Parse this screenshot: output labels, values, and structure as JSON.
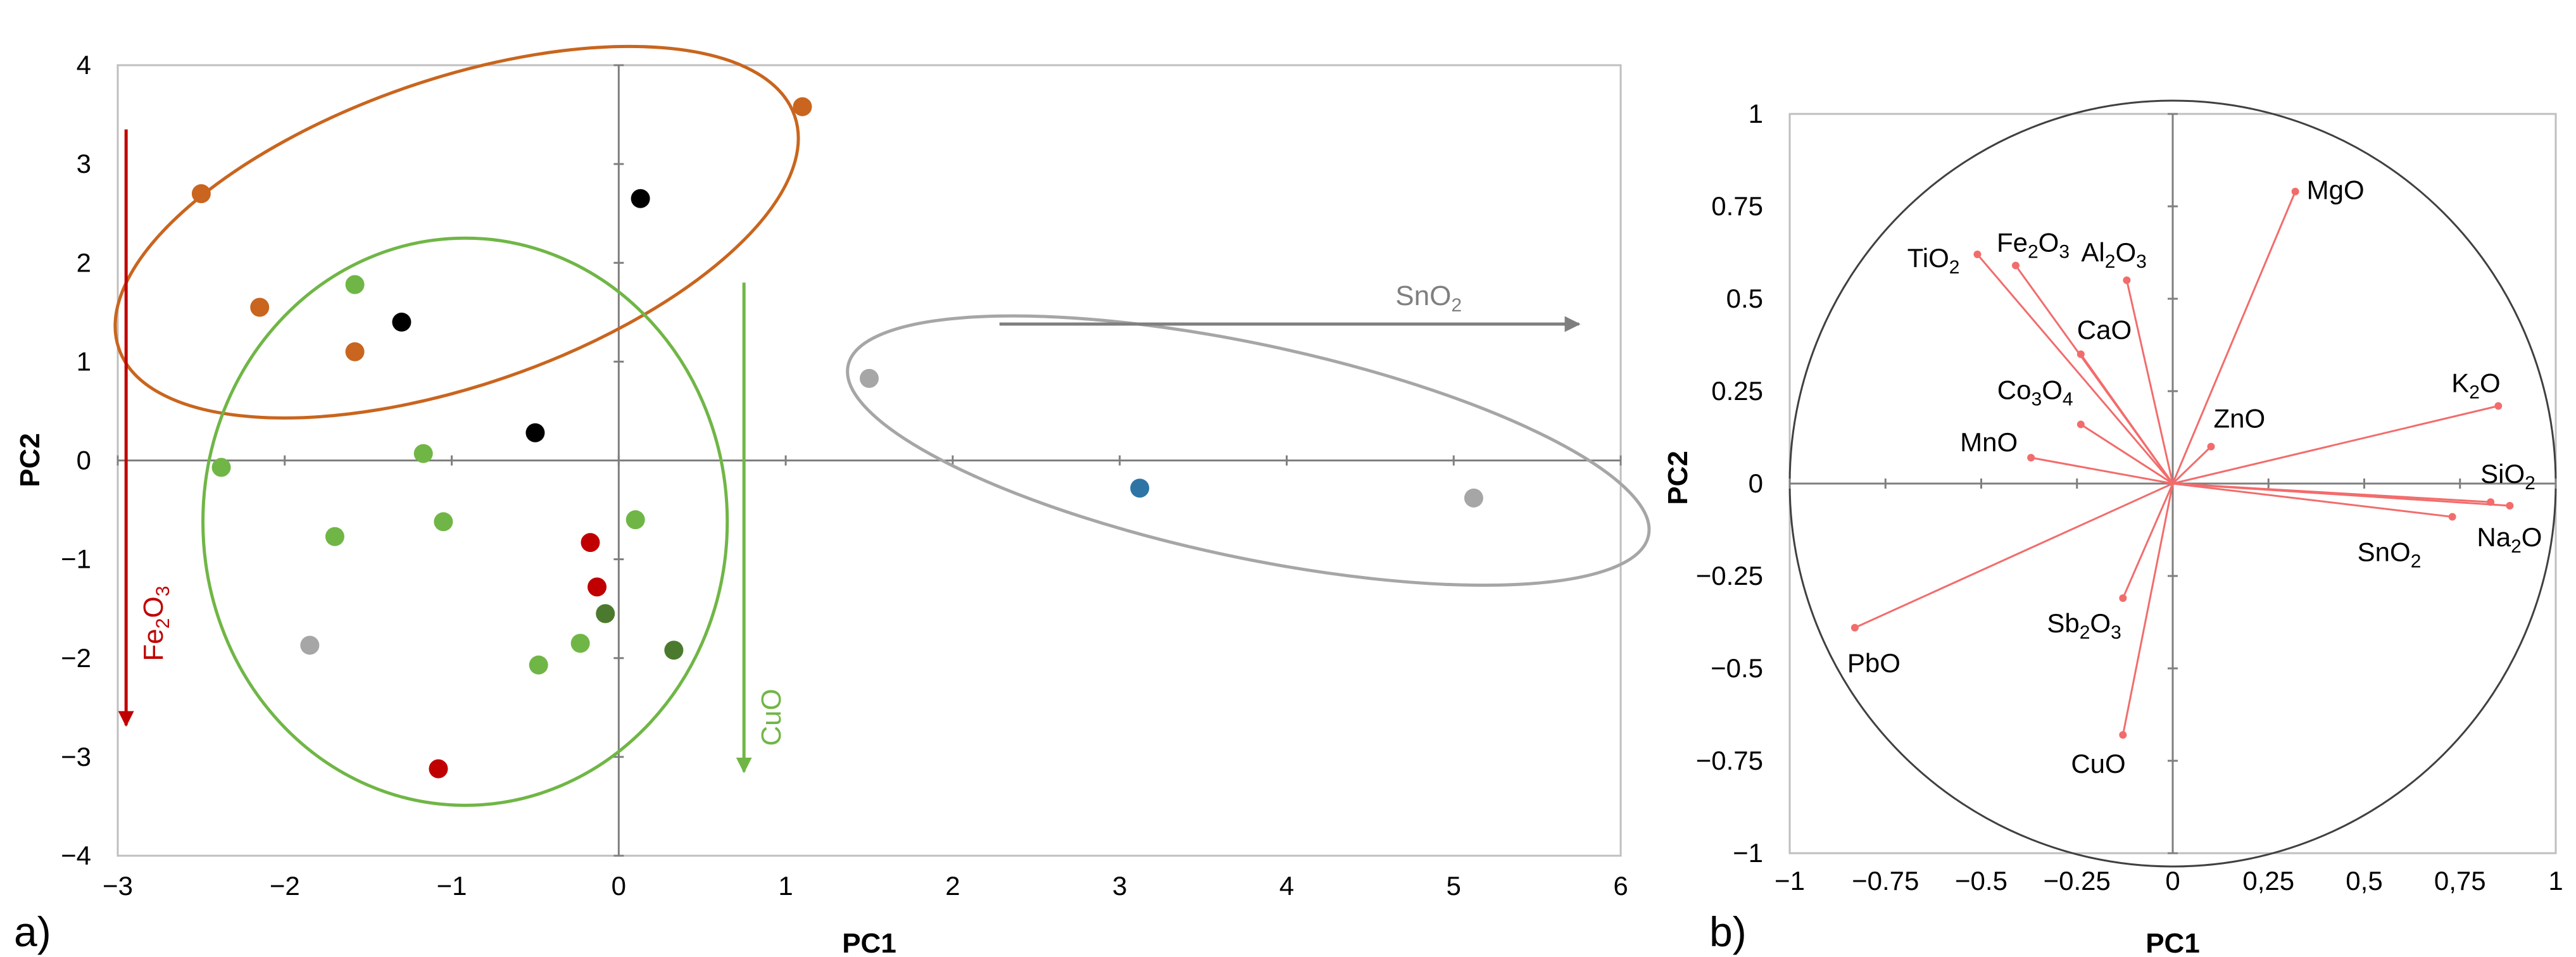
{
  "chart_data": [
    {
      "type": "scatter",
      "panel_label": "a)",
      "xlabel": "PC1",
      "ylabel": "PC2",
      "xlim": [
        -3,
        6
      ],
      "ylim": [
        -4,
        4
      ],
      "x_ticks": [
        "−3",
        "−2",
        "−1",
        "0",
        "1",
        "2",
        "3",
        "4",
        "5",
        "6"
      ],
      "y_ticks": [
        "4",
        "3",
        "2",
        "1",
        "0",
        "−1",
        "−2",
        "−3",
        "−4"
      ],
      "colors": {
        "orange": "#c9651e",
        "black": "#000000",
        "light_green": "#70b646",
        "dark_green": "#4b7a2e",
        "red": "#c00000",
        "gray": "#a6a6a6",
        "blue": "#2e75a6",
        "ellipse_orange": "#c9651e",
        "ellipse_green": "#70b646",
        "ellipse_gray": "#a6a6a6"
      },
      "points": [
        {
          "x": -2.5,
          "y": 2.7,
          "color": "orange"
        },
        {
          "x": -2.15,
          "y": 1.55,
          "color": "orange"
        },
        {
          "x": -1.58,
          "y": 1.1,
          "color": "orange"
        },
        {
          "x": 1.1,
          "y": 3.58,
          "color": "orange"
        },
        {
          "x": -1.3,
          "y": 1.4,
          "color": "black"
        },
        {
          "x": 0.13,
          "y": 2.65,
          "color": "black"
        },
        {
          "x": -0.5,
          "y": 0.28,
          "color": "black"
        },
        {
          "x": -1.58,
          "y": 1.78,
          "color": "light_green"
        },
        {
          "x": -1.17,
          "y": 0.07,
          "color": "light_green"
        },
        {
          "x": -2.38,
          "y": -0.07,
          "color": "light_green"
        },
        {
          "x": -1.7,
          "y": -0.77,
          "color": "light_green"
        },
        {
          "x": -1.05,
          "y": -0.62,
          "color": "light_green"
        },
        {
          "x": 0.1,
          "y": -0.6,
          "color": "light_green"
        },
        {
          "x": -0.23,
          "y": -1.85,
          "color": "light_green"
        },
        {
          "x": -0.48,
          "y": -2.07,
          "color": "light_green"
        },
        {
          "x": -0.08,
          "y": -1.55,
          "color": "dark_green"
        },
        {
          "x": 0.33,
          "y": -1.92,
          "color": "dark_green"
        },
        {
          "x": -0.17,
          "y": -0.83,
          "color": "red"
        },
        {
          "x": -0.13,
          "y": -1.28,
          "color": "red"
        },
        {
          "x": -1.08,
          "y": -3.12,
          "color": "red"
        },
        {
          "x": -1.85,
          "y": -1.87,
          "color": "gray"
        },
        {
          "x": 1.5,
          "y": 0.83,
          "color": "gray"
        },
        {
          "x": 5.12,
          "y": -0.38,
          "color": "gray"
        },
        {
          "x": 3.12,
          "y": -0.28,
          "color": "blue"
        }
      ],
      "ellipses": [
        {
          "cx": -0.97,
          "cy": 2.31,
          "rx": 2.14,
          "ry": 1.55,
          "rotate_deg": -19,
          "color": "ellipse_orange"
        },
        {
          "cx": -0.92,
          "cy": -0.62,
          "rx": 1.57,
          "ry": 2.87,
          "rotate_deg": 0,
          "color": "ellipse_green"
        },
        {
          "cx": 3.77,
          "cy": 0.1,
          "rx": 2.45,
          "ry": 1.08,
          "rotate_deg": 12,
          "color": "ellipse_gray"
        }
      ],
      "annotations": {
        "fe2o3": {
          "base": "Fe",
          "sub1": "2",
          "mid": "O",
          "sub2": "3",
          "color": "#c00000",
          "x": -2.95,
          "y_from": 3.35,
          "y_to": -2.68
        },
        "cuo": {
          "text": "CuO",
          "color": "#70b646",
          "x": 0.75,
          "y_from": 1.8,
          "y_to": -3.15
        },
        "sno2": {
          "base": "SnO",
          "sub": "2",
          "color": "#7f7f7f",
          "y": 1.38,
          "x_from": 2.28,
          "x_to": 5.75
        }
      }
    },
    {
      "type": "scatter",
      "subtype": "loading-plot",
      "panel_label": "b)",
      "xlabel": "PC1",
      "ylabel": "PC2",
      "xlim": [
        -1,
        1
      ],
      "ylim": [
        -1,
        1
      ],
      "x_ticks": [
        "−1",
        "−0.75",
        "−0.5",
        "−0.25",
        "0",
        "0,25",
        "0,5",
        "0,75",
        "1"
      ],
      "y_ticks": [
        "1",
        "0.75",
        "0.5",
        "0.25",
        "0",
        "−0.25",
        "−0.5",
        "−0.75",
        "−1"
      ],
      "vector_color": "#f26c6c",
      "circle_color": "#000000",
      "vectors": [
        {
          "label": "MgO",
          "x": 0.32,
          "y": 0.79
        },
        {
          "label": "TiO2",
          "x": -0.51,
          "y": 0.62
        },
        {
          "label": "Fe2O3",
          "x": -0.41,
          "y": 0.59
        },
        {
          "label": "Al2O3",
          "x": -0.12,
          "y": 0.55
        },
        {
          "label": "CaO",
          "x": -0.24,
          "y": 0.35
        },
        {
          "label": "Co3O4",
          "x": -0.24,
          "y": 0.16
        },
        {
          "label": "ZnO",
          "x": 0.1,
          "y": 0.1
        },
        {
          "label": "MnO",
          "x": -0.37,
          "y": 0.07
        },
        {
          "label": "K2O",
          "x": 0.85,
          "y": 0.21
        },
        {
          "label": "SiO2",
          "x": 0.83,
          "y": -0.05
        },
        {
          "label": "Na2O",
          "x": 0.88,
          "y": -0.06
        },
        {
          "label": "SnO2",
          "x": 0.73,
          "y": -0.09
        },
        {
          "label": "Sb2O3",
          "x": -0.13,
          "y": -0.31
        },
        {
          "label": "PbO",
          "x": -0.83,
          "y": -0.39
        },
        {
          "label": "CuO",
          "x": -0.13,
          "y": -0.68
        }
      ]
    }
  ]
}
